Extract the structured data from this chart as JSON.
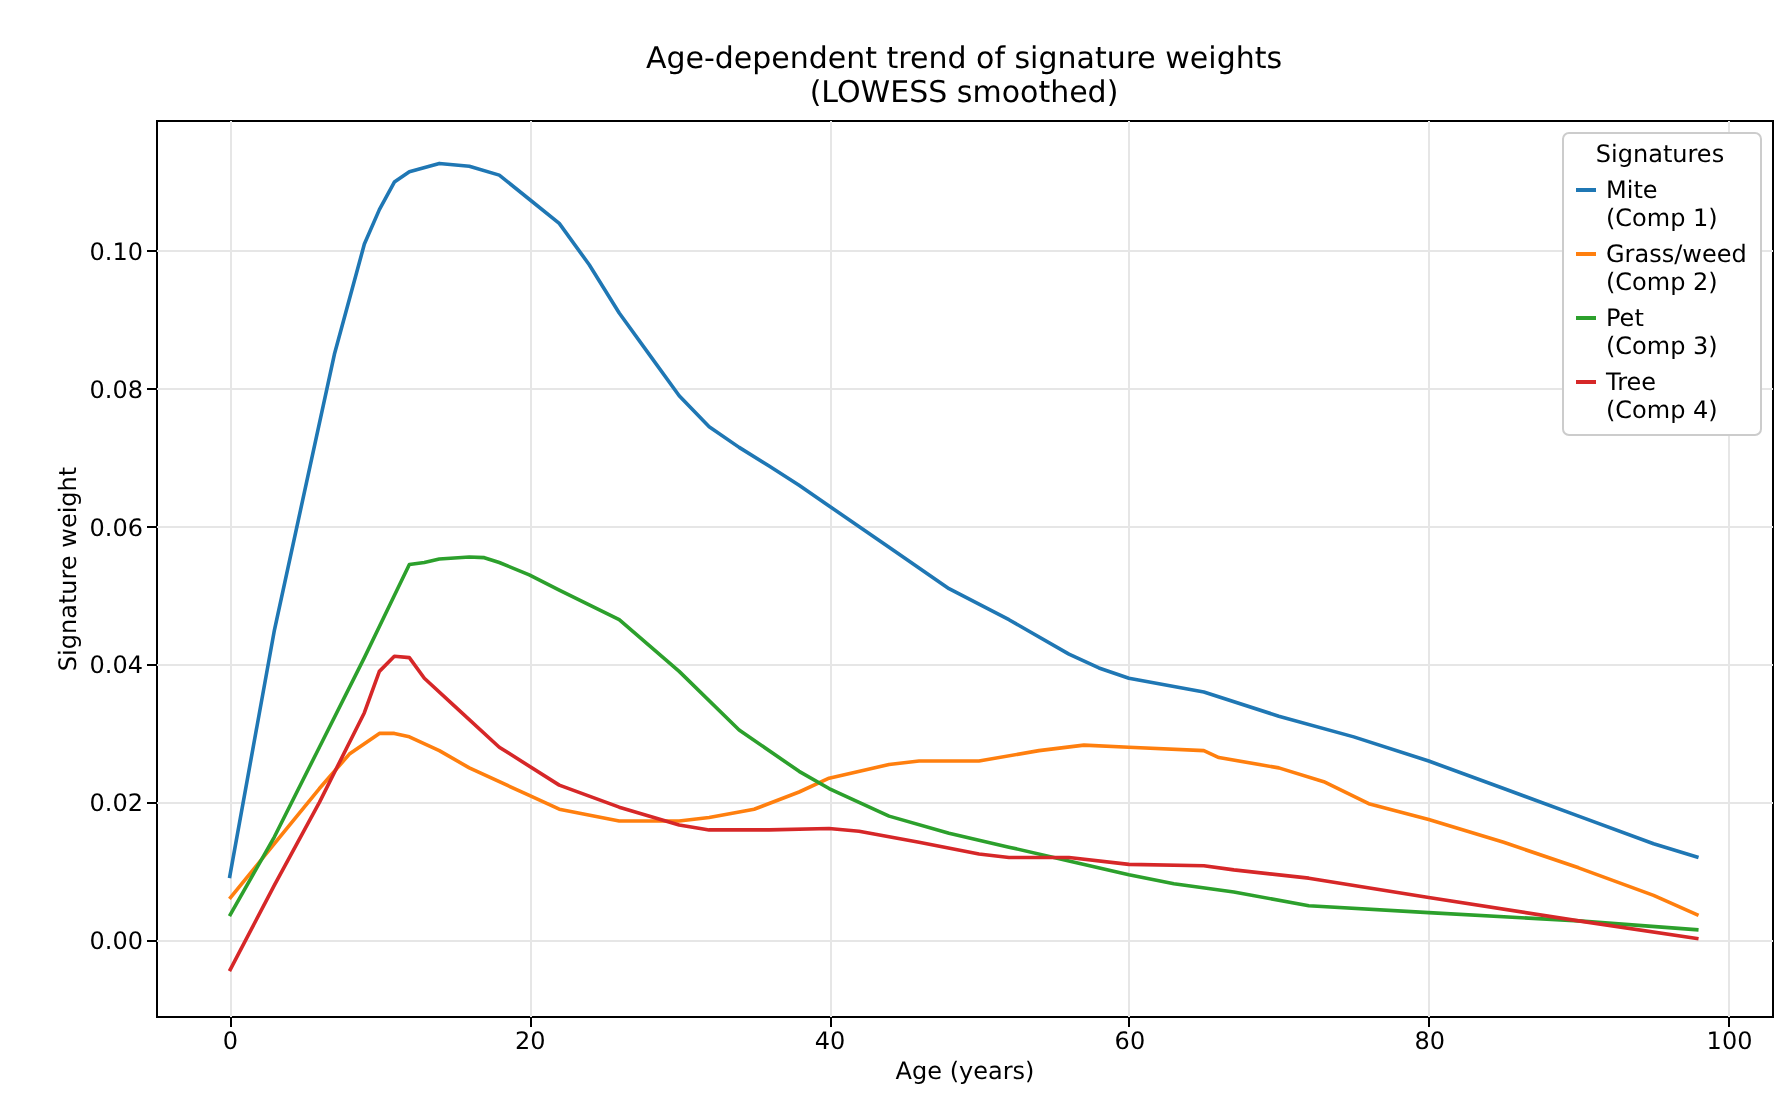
{
  "chart_data": {
    "type": "line",
    "title": "Age-dependent trend of signature weights\n(LOWESS smoothed)",
    "xlabel": "Age (years)",
    "ylabel": "Signature weight",
    "legend_title": "Signatures",
    "legend": "top right",
    "grid": true,
    "marker": "none",
    "line_style": "solid",
    "xlim": [
      -4.9,
      102.9
    ],
    "ylim": [
      -0.011,
      0.119
    ],
    "xticks": [
      0,
      20,
      40,
      60,
      80,
      100
    ],
    "yticks": [
      {
        "value": 0,
        "label": "0.00"
      },
      {
        "value": 0.02,
        "label": "0.02"
      },
      {
        "value": 0.04,
        "label": "0.04"
      },
      {
        "value": 0.06,
        "label": "0.06"
      },
      {
        "value": 0.08,
        "label": "0.08"
      },
      {
        "value": 0.1,
        "label": "0.10"
      }
    ],
    "series": [
      {
        "name": "Mite\n(Comp 1)",
        "color": "#1f77b4",
        "x": [
          0,
          3,
          5,
          7,
          9,
          10,
          11,
          12,
          14,
          16,
          18,
          20,
          22,
          24,
          26,
          28,
          30,
          32,
          34,
          36,
          38,
          40,
          44,
          48,
          52,
          56,
          58,
          60,
          65,
          70,
          75,
          80,
          85,
          90,
          95,
          98
        ],
        "values": [
          0.009,
          0.045,
          0.065,
          0.085,
          0.101,
          0.106,
          0.11,
          0.1115,
          0.1127,
          0.1123,
          0.111,
          0.1075,
          0.104,
          0.098,
          0.091,
          0.085,
          0.079,
          0.0745,
          0.0715,
          0.0688,
          0.066,
          0.063,
          0.057,
          0.051,
          0.0465,
          0.0415,
          0.0395,
          0.038,
          0.036,
          0.0325,
          0.0295,
          0.026,
          0.022,
          0.018,
          0.014,
          0.012
        ]
      },
      {
        "name": "Grass/weed\n(Comp 2)",
        "color": "#ff7f0e",
        "x": [
          0,
          3,
          6,
          8,
          10,
          11,
          12,
          14,
          16,
          20,
          22,
          26,
          30,
          32,
          35,
          38,
          40,
          44,
          46,
          50,
          54,
          57,
          60,
          65,
          66,
          70,
          73,
          76,
          80,
          85,
          90,
          95,
          98
        ],
        "values": [
          0.006,
          0.014,
          0.022,
          0.027,
          0.03,
          0.03,
          0.0295,
          0.0275,
          0.025,
          0.021,
          0.019,
          0.0173,
          0.0173,
          0.0178,
          0.019,
          0.0215,
          0.0235,
          0.0255,
          0.026,
          0.026,
          0.0275,
          0.0283,
          0.028,
          0.0275,
          0.0265,
          0.025,
          0.023,
          0.0198,
          0.0175,
          0.0142,
          0.0105,
          0.0065,
          0.0036
        ]
      },
      {
        "name": "Pet\n(Comp 3)",
        "color": "#2ca02c",
        "x": [
          0,
          3,
          6,
          9,
          11,
          12,
          13,
          14,
          16,
          17,
          18,
          20,
          22,
          26,
          30,
          34,
          38,
          40,
          44,
          48,
          52,
          56,
          60,
          63,
          67,
          72,
          80,
          90,
          98
        ],
        "values": [
          0.0035,
          0.015,
          0.028,
          0.041,
          0.05,
          0.0545,
          0.0548,
          0.0553,
          0.0556,
          0.0555,
          0.0548,
          0.053,
          0.0508,
          0.0465,
          0.039,
          0.0305,
          0.0245,
          0.022,
          0.018,
          0.0155,
          0.0135,
          0.0115,
          0.0095,
          0.0082,
          0.007,
          0.005,
          0.004,
          0.0028,
          0.0015
        ]
      },
      {
        "name": "Tree\n(Comp 4)",
        "color": "#d62728",
        "x": [
          0,
          3,
          6,
          9,
          10,
          11,
          12,
          13,
          15,
          18,
          22,
          26,
          30,
          32,
          36,
          40,
          42,
          46,
          50,
          52,
          56,
          60,
          65,
          67,
          72,
          80,
          90,
          98
        ],
        "values": [
          -0.0045,
          0.008,
          0.02,
          0.033,
          0.039,
          0.0412,
          0.041,
          0.038,
          0.034,
          0.028,
          0.0225,
          0.0193,
          0.0167,
          0.016,
          0.016,
          0.0162,
          0.0158,
          0.0142,
          0.0125,
          0.012,
          0.012,
          0.011,
          0.0108,
          0.0102,
          0.009,
          0.0062,
          0.0028,
          0.0002
        ]
      }
    ]
  }
}
